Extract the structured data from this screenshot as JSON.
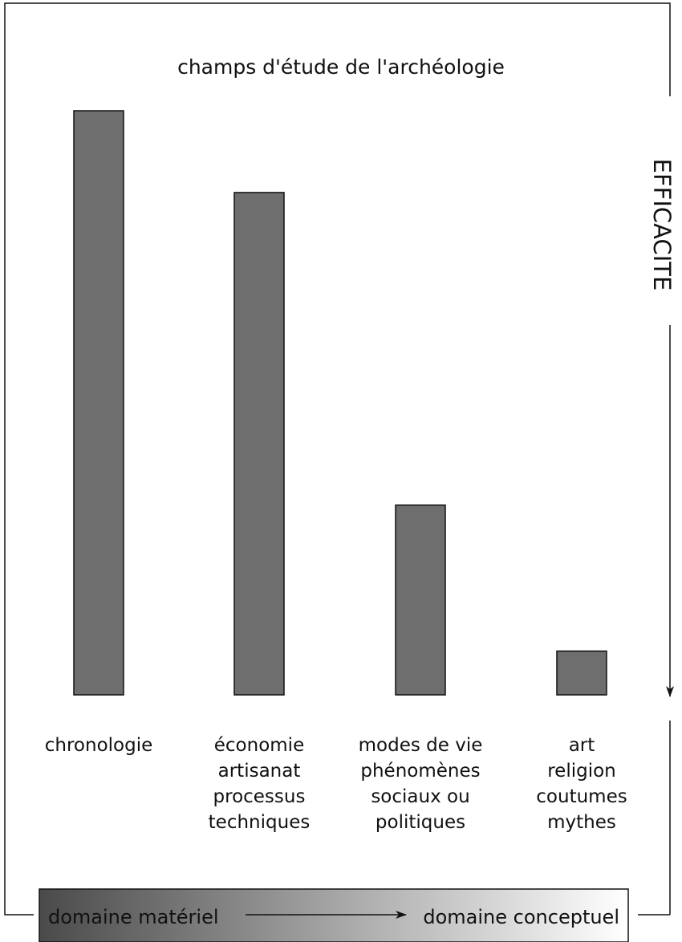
{
  "chart_data": {
    "type": "bar",
    "title": "champs d'étude de l'archéologie",
    "categories": [
      [
        "chronologie"
      ],
      [
        "économie",
        "artisanat",
        "processus",
        "techniques"
      ],
      [
        "modes de vie",
        "phénomènes",
        "sociaux ou",
        "politiques"
      ],
      [
        "art",
        "religion",
        "coutumes",
        "mythes"
      ]
    ],
    "values": [
      100,
      86,
      32.5,
      7.5
    ],
    "ylim": [
      0,
      100
    ],
    "ylabel": "EFFICACITE",
    "yticks": false,
    "grid": false,
    "bar_color": "#6e6e6e",
    "gradient_bar": {
      "left_label": "domaine matériel",
      "right_label": "domaine conceptuel",
      "color_start": "#4a4a4a",
      "color_end": "#ffffff"
    }
  }
}
